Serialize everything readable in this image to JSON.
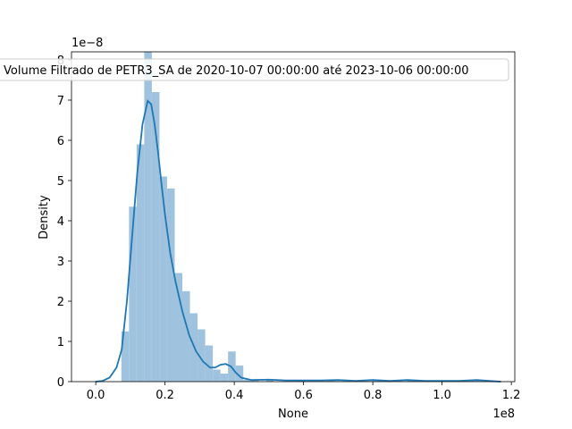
{
  "chart_data": {
    "type": "bar",
    "title": "",
    "xlabel": "None",
    "ylabel": "Density",
    "x_multiplier": "1e8",
    "y_multiplier": "1e−8",
    "xlim": [
      -0.07,
      1.21
    ],
    "ylim": [
      0,
      8.2
    ],
    "xticks": [
      {
        "value": 0.0,
        "label": "0.0"
      },
      {
        "value": 0.2,
        "label": "0.2"
      },
      {
        "value": 0.4,
        "label": "0.4"
      },
      {
        "value": 0.6,
        "label": "0.6"
      },
      {
        "value": 0.8,
        "label": "0.8"
      },
      {
        "value": 1.0,
        "label": "1.0"
      },
      {
        "value": 1.2,
        "label": "1.2"
      }
    ],
    "yticks": [
      {
        "value": 0,
        "label": "0"
      },
      {
        "value": 1,
        "label": "1"
      },
      {
        "value": 2,
        "label": "2"
      },
      {
        "value": 3,
        "label": "3"
      },
      {
        "value": 4,
        "label": "4"
      },
      {
        "value": 5,
        "label": "5"
      },
      {
        "value": 6,
        "label": "6"
      },
      {
        "value": 7,
        "label": "7"
      },
      {
        "value": 8,
        "label": "8"
      }
    ],
    "legend": {
      "placement": "top-center",
      "entries": [
        "Volume Filtrado de PETR3_SA de 2020-10-07 00:00:00 até 2023-10-06 00:00:00"
      ]
    },
    "histogram": {
      "color": "#9fc3df",
      "bins": [
        {
          "x0": 0.074,
          "x1": 0.096,
          "density": 1.25
        },
        {
          "x0": 0.096,
          "x1": 0.118,
          "density": 4.35
        },
        {
          "x0": 0.118,
          "x1": 0.14,
          "density": 5.9
        },
        {
          "x0": 0.14,
          "x1": 0.162,
          "density": 8.2
        },
        {
          "x0": 0.162,
          "x1": 0.184,
          "density": 7.2
        },
        {
          "x0": 0.184,
          "x1": 0.206,
          "density": 5.1
        },
        {
          "x0": 0.206,
          "x1": 0.228,
          "density": 4.8
        },
        {
          "x0": 0.228,
          "x1": 0.25,
          "density": 2.7
        },
        {
          "x0": 0.25,
          "x1": 0.272,
          "density": 2.25
        },
        {
          "x0": 0.272,
          "x1": 0.294,
          "density": 1.7
        },
        {
          "x0": 0.294,
          "x1": 0.316,
          "density": 1.3
        },
        {
          "x0": 0.316,
          "x1": 0.338,
          "density": 0.9
        },
        {
          "x0": 0.338,
          "x1": 0.36,
          "density": 0.3
        },
        {
          "x0": 0.36,
          "x1": 0.382,
          "density": 0.2
        },
        {
          "x0": 0.382,
          "x1": 0.404,
          "density": 0.75
        },
        {
          "x0": 0.404,
          "x1": 0.426,
          "density": 0.4
        },
        {
          "x0": 0.426,
          "x1": 0.448,
          "density": 0.05
        },
        {
          "x0": 0.448,
          "x1": 0.47,
          "density": 0.03
        },
        {
          "x0": 0.492,
          "x1": 0.514,
          "density": 0.05
        },
        {
          "x0": 0.58,
          "x1": 0.602,
          "density": 0.03
        },
        {
          "x0": 0.668,
          "x1": 0.69,
          "density": 0.05
        },
        {
          "x0": 0.8,
          "x1": 0.822,
          "density": 0.05
        },
        {
          "x0": 0.9,
          "x1": 0.922,
          "density": 0.05
        },
        {
          "x0": 1.085,
          "x1": 1.107,
          "density": 0.05
        }
      ]
    },
    "kde": {
      "color": "#1f77b4",
      "x": [
        0.0,
        0.02,
        0.04,
        0.06,
        0.075,
        0.09,
        0.105,
        0.12,
        0.135,
        0.15,
        0.16,
        0.17,
        0.18,
        0.19,
        0.2,
        0.215,
        0.23,
        0.25,
        0.27,
        0.29,
        0.31,
        0.33,
        0.345,
        0.36,
        0.375,
        0.39,
        0.405,
        0.42,
        0.45,
        0.5,
        0.55,
        0.6,
        0.65,
        0.7,
        0.75,
        0.8,
        0.85,
        0.9,
        0.95,
        1.0,
        1.05,
        1.1,
        1.15,
        1.17
      ],
      "y": [
        0.0,
        0.02,
        0.1,
        0.35,
        0.8,
        2.0,
        3.6,
        5.2,
        6.4,
        6.98,
        6.9,
        6.4,
        5.7,
        4.9,
        4.15,
        3.2,
        2.5,
        1.75,
        1.15,
        0.75,
        0.5,
        0.35,
        0.35,
        0.42,
        0.44,
        0.38,
        0.22,
        0.1,
        0.04,
        0.05,
        0.03,
        0.03,
        0.03,
        0.04,
        0.02,
        0.04,
        0.02,
        0.04,
        0.02,
        0.02,
        0.02,
        0.04,
        0.01,
        0.0
      ]
    }
  }
}
